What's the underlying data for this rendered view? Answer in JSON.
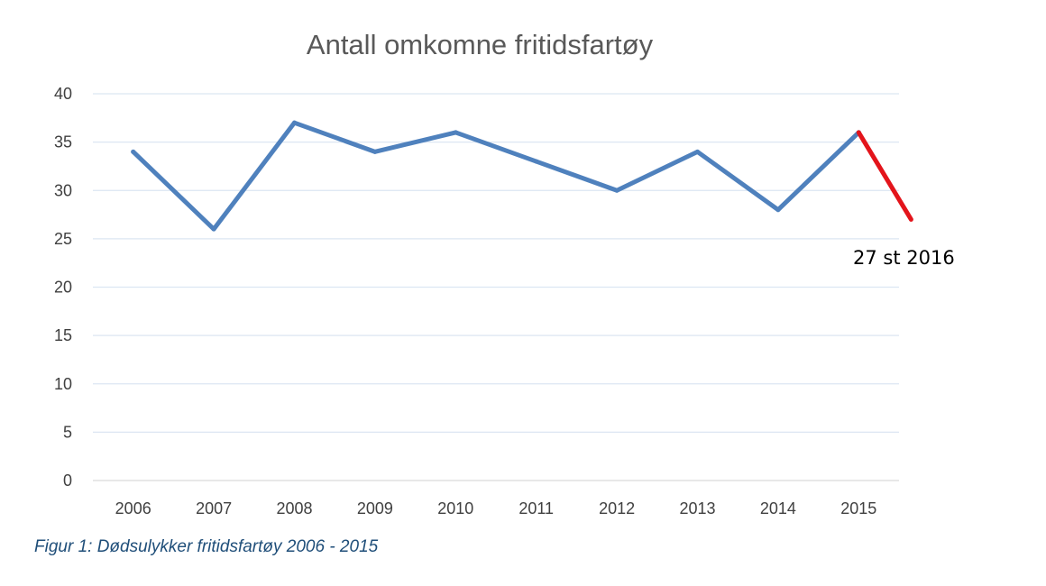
{
  "chart_data": {
    "type": "line",
    "title": "Antall omkomne fritidsfartøy",
    "categories": [
      "2006",
      "2007",
      "2008",
      "2009",
      "2010",
      "2011",
      "2012",
      "2013",
      "2014",
      "2015"
    ],
    "series": [
      {
        "values": [
          34,
          26,
          37,
          34,
          36,
          33,
          30,
          34,
          28,
          36
        ],
        "color": "#4F81BD"
      }
    ],
    "extension": {
      "from": "2015",
      "value": 27,
      "color": "#E3141B"
    },
    "annotation": "27 st 2016",
    "ylim": [
      0,
      40
    ],
    "yticks": [
      0,
      5,
      10,
      15,
      20,
      25,
      30,
      35,
      40
    ],
    "grid": true,
    "xlabel": "",
    "ylabel": ""
  },
  "caption": "Figur 1: Dødsulykker fritidsfartøy 2006 - 2015"
}
